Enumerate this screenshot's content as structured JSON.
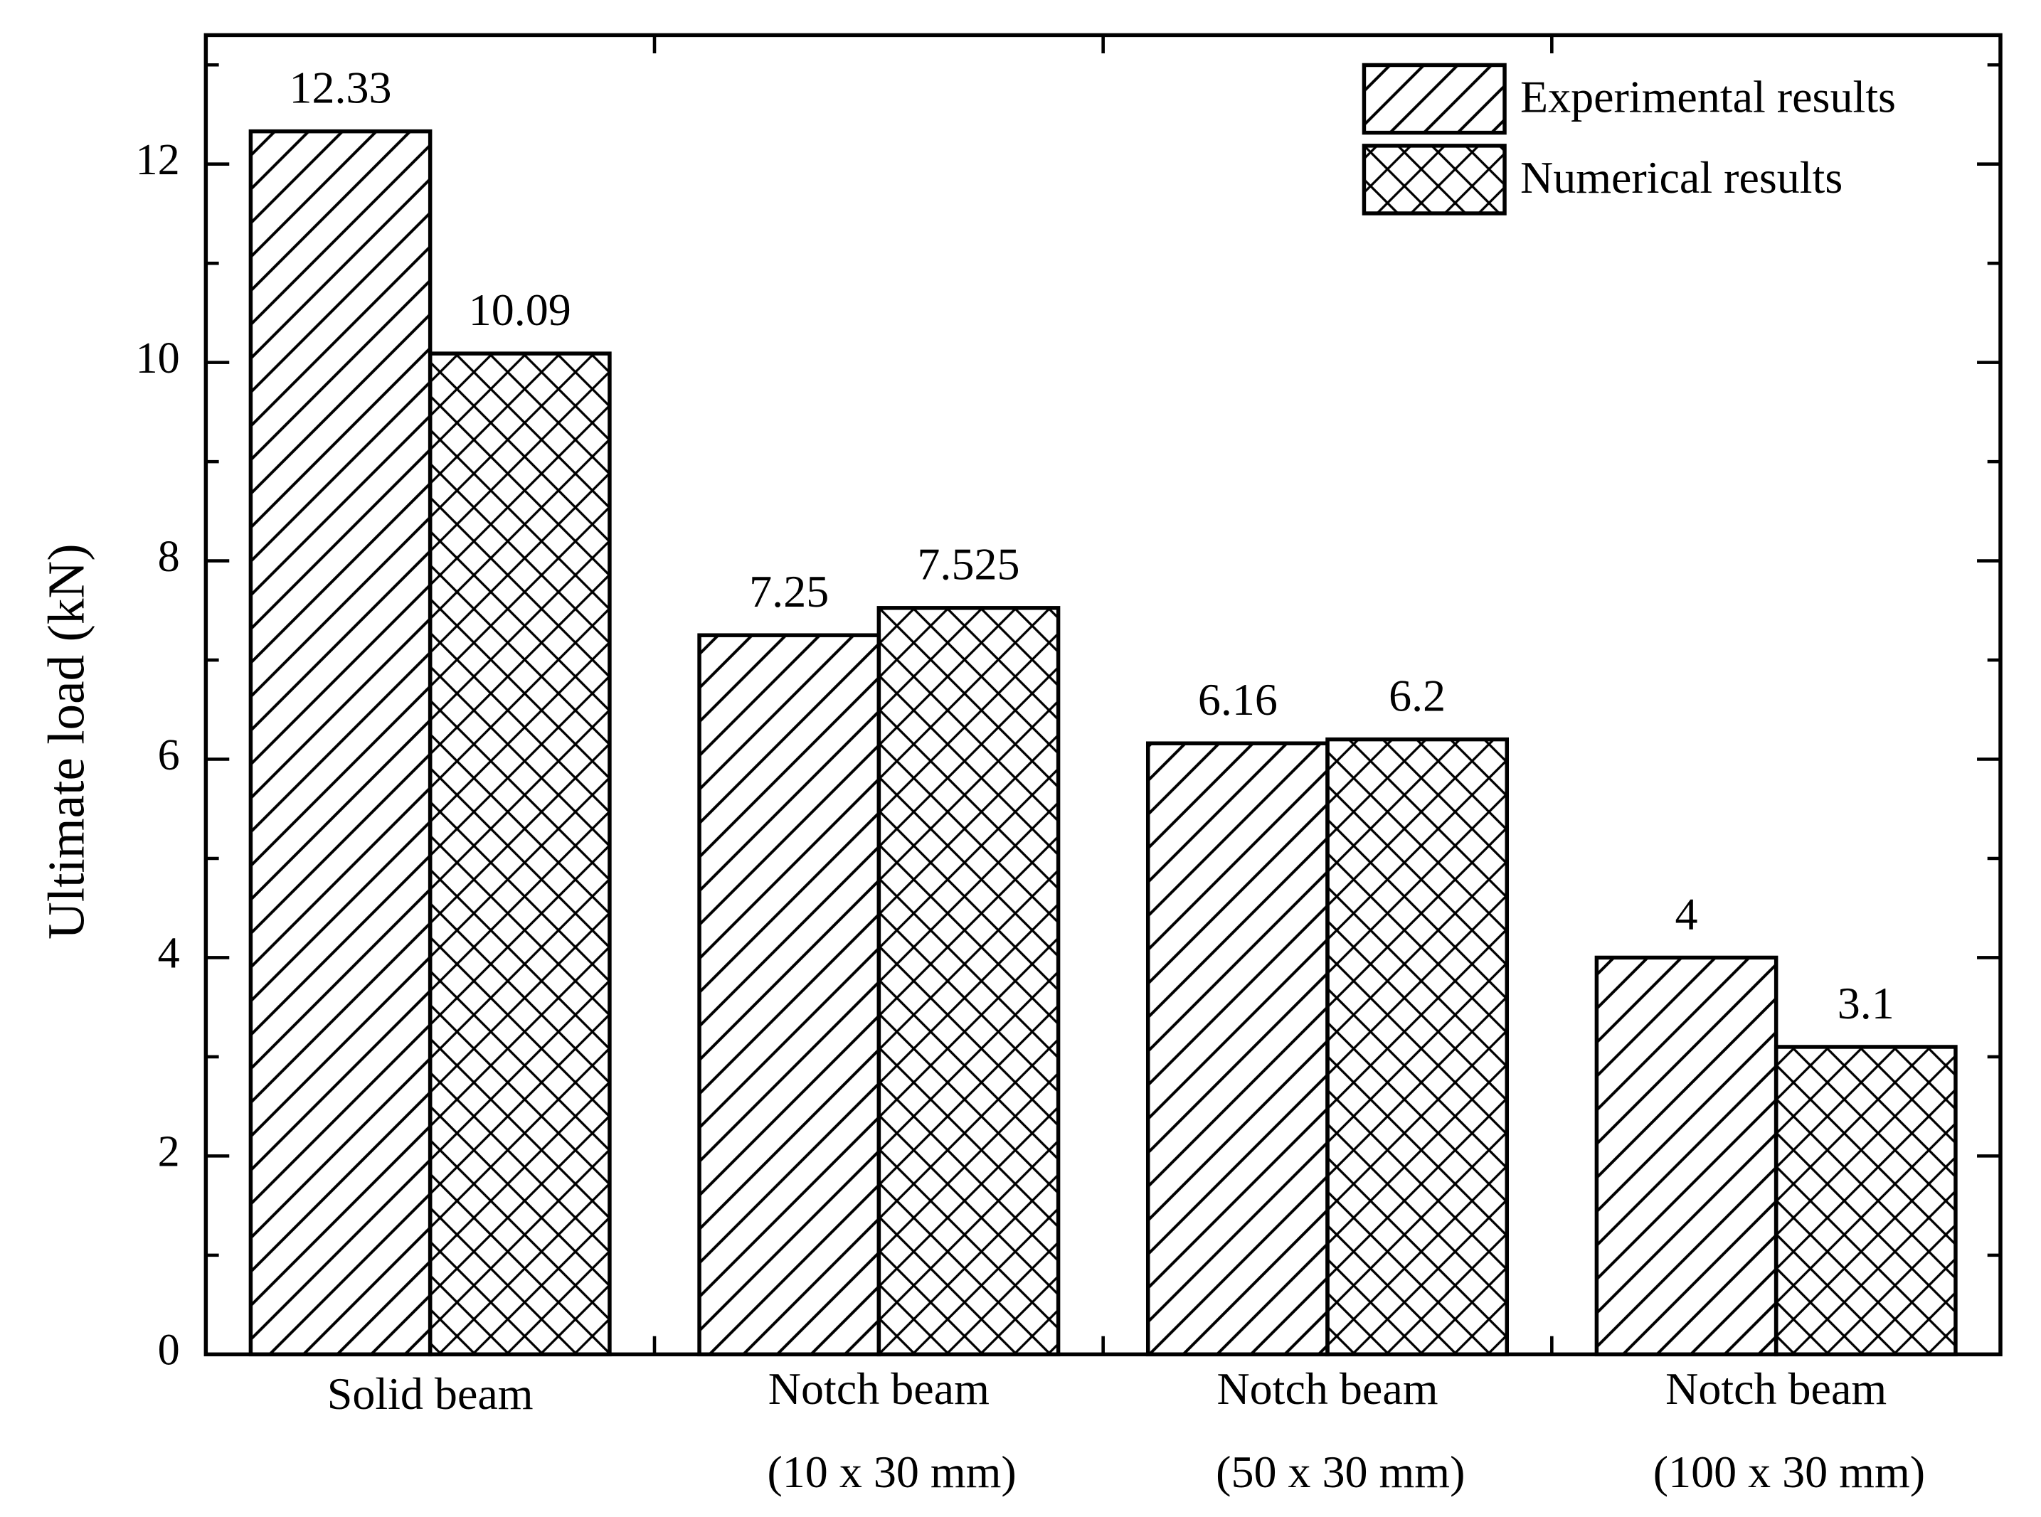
{
  "chart_data": {
    "type": "bar",
    "ylabel": "Ultimate load (kN)",
    "categories": [
      [
        "Solid beam"
      ],
      [
        "Notch beam",
        "(10 x 30 mm)"
      ],
      [
        "Notch beam",
        "(50 x 30 mm)"
      ],
      [
        "Notch beam",
        "(100 x 30 mm)"
      ]
    ],
    "series": [
      {
        "name": "Experimental results",
        "color": "#000000",
        "hatch": "diagonal",
        "values": [
          12.33,
          7.25,
          6.16,
          4
        ]
      },
      {
        "name": "Numerical results",
        "color": "#000000",
        "hatch": "cross",
        "values": [
          10.09,
          7.525,
          6.2,
          3.1
        ]
      }
    ],
    "ylim": [
      0,
      13.3
    ],
    "yticks": [
      0,
      2,
      4,
      6,
      8,
      10,
      12
    ],
    "yminorticks": [
      1,
      3,
      5,
      7,
      9,
      11,
      13
    ],
    "legend": "upper right"
  }
}
